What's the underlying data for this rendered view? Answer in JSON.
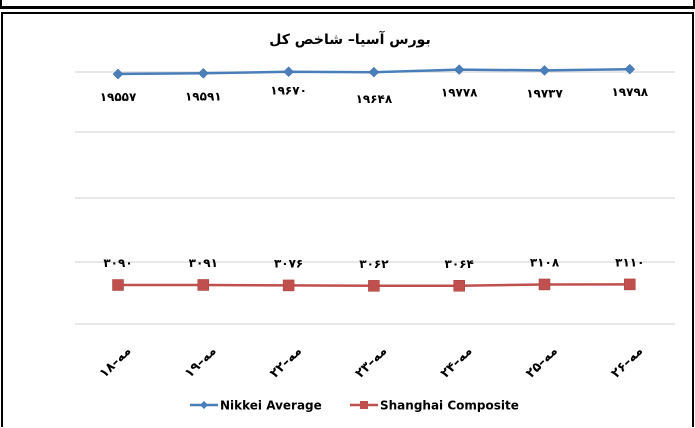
{
  "chart_data": {
    "type": "line",
    "title": "بورس آسیا– شاخص کل",
    "xlabel": "",
    "ylabel": "",
    "categories": [
      "۱۸–مه",
      "۱۹–مه",
      "۲۲–مه",
      "۲۳–مه",
      "۲۴–مه",
      "۲۵–مه",
      "۲۶–مه"
    ],
    "series": [
      {
        "name": "Nikkei Average",
        "values": [
          19557,
          19591,
          19670,
          19648,
          19778,
          19737,
          19798
        ],
        "labels": [
          "۱۹۵۵۷",
          "۱۹۵۹۱",
          "۱۹۶۷۰",
          "۱۹۶۴۸",
          "۱۹۷۷۸",
          "۱۹۷۳۷",
          "۱۹۷۹۸"
        ],
        "color": "#4A7EBB",
        "marker": "diamond"
      },
      {
        "name": "Shanghai Composite",
        "values": [
          3090,
          3091,
          3076,
          3062,
          3064,
          3108,
          3110
        ],
        "labels": [
          "۳۰۹۰",
          "۳۰۹۱",
          "۳۰۷۶",
          "۳۰۶۲",
          "۳۰۶۴",
          "۳۱۰۸",
          "۳۱۱۰"
        ],
        "color": "#C0504D",
        "marker": "square"
      }
    ],
    "grid": true,
    "legend": "bottom",
    "axis_break": true
  }
}
